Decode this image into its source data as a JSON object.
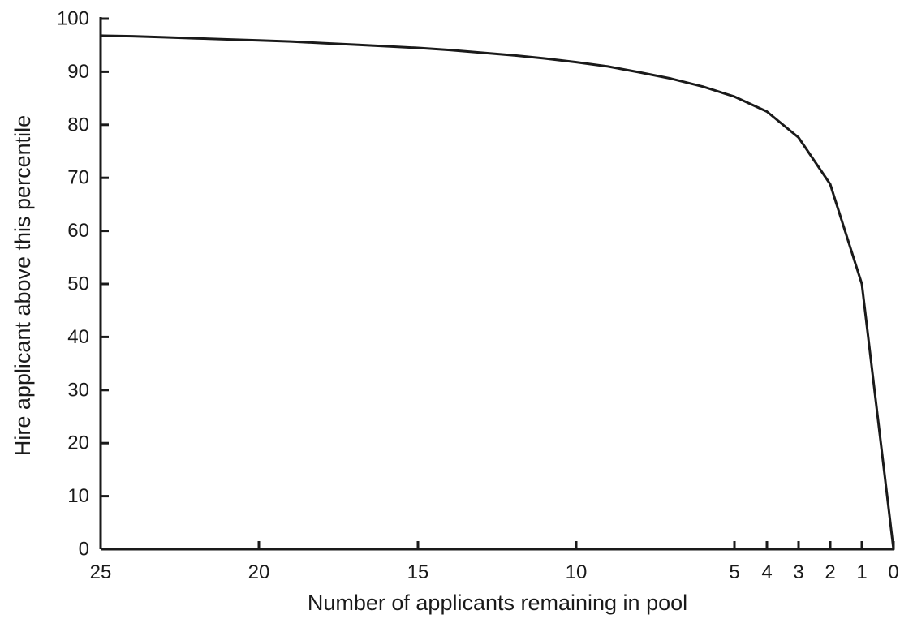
{
  "chart_data": {
    "type": "line",
    "title": "",
    "xlabel": "Number of applicants remaining in pool",
    "ylabel": "Hire applicant above this percentile",
    "xlim": [
      25,
      0
    ],
    "ylim": [
      0,
      100
    ],
    "x_ticks": [
      25,
      20,
      15,
      10,
      5,
      4,
      3,
      2,
      1,
      0
    ],
    "y_ticks": [
      0,
      10,
      20,
      30,
      40,
      50,
      60,
      70,
      80,
      90,
      100
    ],
    "x_tick_labels": [
      "25",
      "20",
      "15",
      "10",
      "5",
      "4",
      "3",
      "2",
      "1",
      "0"
    ],
    "y_tick_labels": [
      "0",
      "10",
      "20",
      "30",
      "40",
      "50",
      "60",
      "70",
      "80",
      "90",
      "100"
    ],
    "grid": false,
    "legend": "none",
    "line_color": "#1a1a1a",
    "series": [
      {
        "x": [
          25,
          24,
          23,
          22,
          21,
          20,
          19,
          18,
          17,
          16,
          15,
          14,
          13,
          12,
          11,
          10,
          9,
          8,
          7,
          6,
          5,
          4,
          3,
          2,
          1,
          0
        ],
        "y": [
          96.8,
          96.7,
          96.5,
          96.3,
          96.1,
          95.9,
          95.7,
          95.4,
          95.1,
          94.8,
          94.5,
          94.1,
          93.6,
          93.1,
          92.5,
          91.8,
          91.0,
          89.9,
          88.7,
          87.2,
          85.3,
          82.5,
          77.6,
          68.8,
          50.0,
          0.0
        ]
      }
    ]
  }
}
